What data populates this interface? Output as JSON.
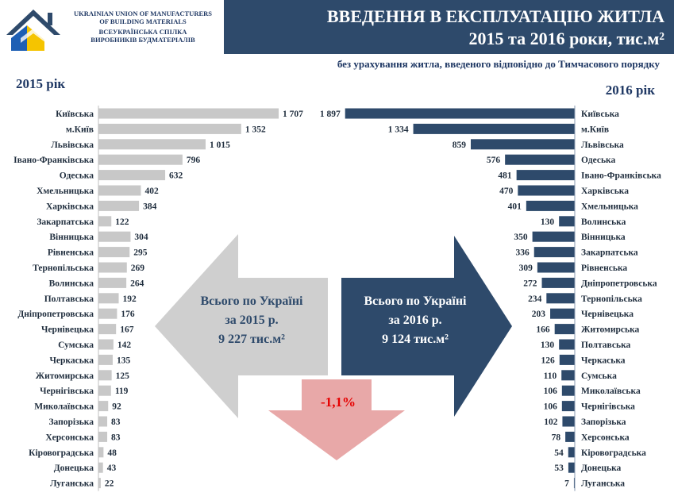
{
  "header": {
    "org_line1": "UKRAINIAN UNION OF MANUFACTURERS",
    "org_line2": "OF BUILDING MATERIALS",
    "org_line3": "ВСЕУКРАЇНСЬКА СПІЛКА",
    "org_line4": "ВИРОБНИКІВ БУДМАТЕРІАЛІВ",
    "title_line1": "ВВЕДЕННЯ В ЕКСПЛУАТАЦІЮ ЖИТЛА",
    "title_line2": "2015 та 2016 роки, тис.м²",
    "subtitle": "без урахування житла, введеного відповідно до Тимчасового порядку"
  },
  "summary": {
    "left_line1": "Всього по Україні",
    "left_line2": "за 2015 р.",
    "left_line3": "9 227 тис.м²",
    "right_line1": "Всього по Україні",
    "right_line2": "за 2016 р.",
    "right_line3": "9 124 тис.м²",
    "change": "-1,1%"
  },
  "colors": {
    "banner": "#2e4a6b",
    "bar_2015": "#c8c8c8",
    "bar_2016": "#2e4a6b",
    "arrow_left": "#cfcfcf",
    "arrow_down": "#e8a8a8",
    "change_text": "#e60000"
  },
  "chart_data": [
    {
      "type": "bar",
      "orientation": "horizontal",
      "title": "2015 рік",
      "categories": [
        "Київська",
        "м.Київ",
        "Львівська",
        "Івано-Франківська",
        "Одеська",
        "Хмельницька",
        "Харківська",
        "Закарпатська",
        "Вінницька",
        "Рівненська",
        "Тернопільська",
        "Волинська",
        "Полтавська",
        "Дніпропетровська",
        "Чернівецька",
        "Сумська",
        "Черкаська",
        "Житомирська",
        "Чернігівська",
        "Миколаївська",
        "Запорізька",
        "Херсонська",
        "Кіровоградська",
        "Донецька",
        "Луганська"
      ],
      "values": [
        1707,
        1352,
        1015,
        796,
        632,
        402,
        384,
        122,
        304,
        295,
        269,
        264,
        192,
        176,
        167,
        142,
        135,
        125,
        119,
        92,
        83,
        83,
        48,
        43,
        22
      ],
      "value_labels": [
        "1 707",
        "1 352",
        "1 015",
        "796",
        "632",
        "402",
        "384",
        "122",
        "304",
        "295",
        "269",
        "264",
        "192",
        "176",
        "167",
        "142",
        "135",
        "125",
        "119",
        "92",
        "83",
        "83",
        "48",
        "43",
        "22"
      ]
    },
    {
      "type": "bar",
      "orientation": "horizontal",
      "title": "2016 рік",
      "categories": [
        "Київська",
        "м.Київ",
        "Львівська",
        "Одеська",
        "Івано-Франківська",
        "Харківська",
        "Хмельницька",
        "Волинська",
        "Вінницька",
        "Закарпатська",
        "Рівненська",
        "Дніпропетровська",
        "Тернопільська",
        "Чернівецька",
        "Житомирська",
        "Полтавська",
        "Черкаська",
        "Сумська",
        "Миколаївська",
        "Чернігівська",
        "Запорізька",
        "Херсонська",
        "Кіровоградська",
        "Донецька",
        "Луганська"
      ],
      "values": [
        1897,
        1334,
        859,
        576,
        481,
        470,
        401,
        130,
        350,
        336,
        309,
        272,
        234,
        203,
        166,
        130,
        126,
        110,
        106,
        106,
        102,
        78,
        54,
        53,
        7
      ],
      "value_labels": [
        "1 897",
        "1 334",
        "859",
        "576",
        "481",
        "470",
        "401",
        "130",
        "350",
        "336",
        "309",
        "272",
        "234",
        "203",
        "166",
        "130",
        "126",
        "110",
        "106",
        "106",
        "102",
        "78",
        "54",
        "53",
        "7"
      ]
    }
  ]
}
